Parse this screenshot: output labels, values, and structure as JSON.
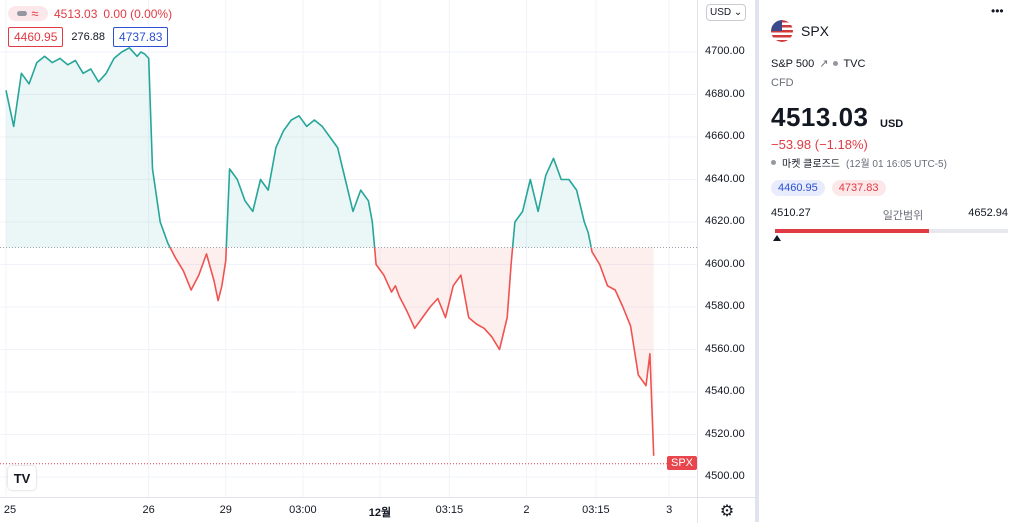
{
  "legend": {
    "price": "4513.03",
    "change": "0.00 (0.00%)",
    "low_box": "4460.95",
    "mid_value": "276.88",
    "high_box": "4737.83"
  },
  "currency_button": "USD",
  "chart_data": {
    "type": "area",
    "baseline": 4608,
    "ylim": [
      4495,
      4712
    ],
    "y_ticks": [
      4700,
      4680,
      4660,
      4640,
      4620,
      4600,
      4580,
      4560,
      4540,
      4520,
      4500
    ],
    "y_tick_labels": [
      "4700.00",
      "4680.00",
      "4660.00",
      "4640.00",
      "4620.00",
      "4600.00",
      "4580.00",
      "4560.00",
      "4540.00",
      "4520.00",
      "4500.00"
    ],
    "x_ticks": [
      {
        "label": "25",
        "i": 0
      },
      {
        "label": "26",
        "i": 37
      },
      {
        "label": "29",
        "i": 57
      },
      {
        "label": "03:00",
        "i": 77
      },
      {
        "label": "12월",
        "i": 97,
        "bold": true
      },
      {
        "label": "03:15",
        "i": 115
      },
      {
        "label": "2",
        "i": 135
      },
      {
        "label": "03:15",
        "i": 153
      },
      {
        "label": "3",
        "i": 172
      }
    ],
    "n_slots": 174,
    "x": [
      0,
      2,
      4,
      6,
      8,
      10,
      12,
      14,
      16,
      18,
      20,
      22,
      24,
      26,
      28,
      30,
      32,
      34,
      35,
      36,
      37,
      38,
      40,
      42,
      44,
      46,
      48,
      50,
      52,
      54,
      55,
      56,
      57,
      58,
      60,
      62,
      64,
      66,
      68,
      70,
      72,
      74,
      76,
      78,
      80,
      82,
      84,
      86,
      88,
      90,
      92,
      94,
      95,
      96,
      98,
      100,
      101,
      102,
      104,
      106,
      108,
      110,
      112,
      114,
      116,
      118,
      120,
      122,
      124,
      126,
      128,
      130,
      131,
      132,
      134,
      136,
      138,
      140,
      142,
      144,
      146,
      148,
      150,
      151,
      152,
      154,
      156,
      158,
      160,
      162,
      164,
      166,
      167,
      168
    ],
    "values": [
      4682,
      4665,
      4690,
      4685,
      4695,
      4698,
      4695,
      4697,
      4694,
      4696,
      4690,
      4692,
      4686,
      4690,
      4697,
      4700,
      4702,
      4698,
      4700,
      4699,
      4697,
      4645,
      4620,
      4610,
      4603,
      4597,
      4588,
      4595,
      4605,
      4592,
      4583,
      4590,
      4602,
      4645,
      4640,
      4630,
      4625,
      4640,
      4635,
      4655,
      4663,
      4668,
      4670,
      4665,
      4668,
      4665,
      4660,
      4655,
      4640,
      4625,
      4635,
      4630,
      4620,
      4600,
      4595,
      4587,
      4590,
      4585,
      4578,
      4570,
      4575,
      4580,
      4584,
      4575,
      4590,
      4595,
      4575,
      4572,
      4570,
      4566,
      4560,
      4575,
      4600,
      4620,
      4625,
      4640,
      4625,
      4642,
      4650,
      4640,
      4640,
      4635,
      4620,
      4615,
      4606,
      4600,
      4590,
      4588,
      4580,
      4571,
      4548,
      4543,
      4558,
      4510
    ]
  },
  "end_label": "SPX",
  "tv_logo": "TV",
  "settings_icon": "gear-icon",
  "panel": {
    "symbol": "SPX",
    "exchange_name": "S&P 500",
    "exchange_source": "TVC",
    "instrument_type": "CFD",
    "price": "4513.03",
    "currency": "USD",
    "change": "−53.98 (−1.18%)",
    "status_label": "마켓 클로즈드",
    "status_time": "(12월 01 16:05 UTC-5)",
    "pill_low": "4460.95",
    "pill_high": "4737.83",
    "range_low": "4510.27",
    "range_label": "일간범위",
    "range_high": "4652.94",
    "range_fraction": 0.66,
    "colors": {
      "up": "#26a69a",
      "down": "#ef5350",
      "accent_blue": "#2b50d4"
    }
  }
}
